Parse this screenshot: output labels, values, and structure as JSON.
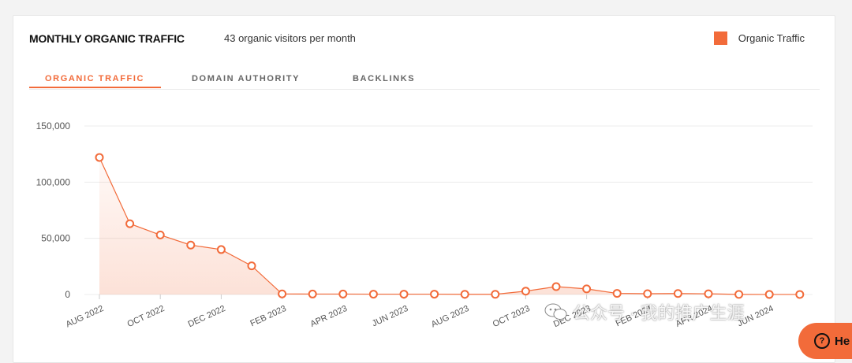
{
  "header": {
    "title": "MONTHLY ORGANIC TRAFFIC",
    "subtitle": "43 organic visitors per month",
    "legend_label": "Organic Traffic",
    "legend_color": "#f26b3a"
  },
  "tabs": [
    {
      "label": "ORGANIC TRAFFIC",
      "active": true
    },
    {
      "label": "DOMAIN AUTHORITY",
      "active": false
    },
    {
      "label": "BACKLINKS",
      "active": false
    }
  ],
  "chart_data": {
    "type": "area",
    "title": "",
    "xlabel": "",
    "ylabel": "",
    "ylim": [
      0,
      150000
    ],
    "yticks": [
      0,
      50000,
      100000,
      150000
    ],
    "ytick_labels": [
      "0",
      "50,000",
      "100,000",
      "150,000"
    ],
    "grid": true,
    "legend_placement": "top-right",
    "x": [
      "Aug 2022",
      "Sep 2022",
      "Oct 2022",
      "Nov 2022",
      "Dec 2022",
      "Jan 2023",
      "Feb 2023",
      "Mar 2023",
      "Apr 2023",
      "May 2023",
      "Jun 2023",
      "Jul 2023",
      "Aug 2023",
      "Sep 2023",
      "Oct 2023",
      "Nov 2023",
      "Dec 2023",
      "Jan 2024",
      "Feb 2024",
      "Mar 2024",
      "Apr 2024",
      "May 2024",
      "Jun 2024",
      "Jul 2024"
    ],
    "xtick_labels": [
      "AUG 2022",
      "OCT 2022",
      "DEC 2022",
      "FEB 2023",
      "APR 2023",
      "JUN 2023",
      "AUG 2023",
      "OCT 2023",
      "DEC 2023",
      "FEB 2024",
      "APR 2024",
      "JUN 2024"
    ],
    "series": [
      {
        "name": "Organic Traffic",
        "color": "#f26b3a",
        "values": [
          122000,
          63000,
          53000,
          44000,
          40000,
          25500,
          500,
          400,
          400,
          300,
          300,
          300,
          200,
          200,
          3000,
          7000,
          5000,
          1000,
          700,
          900,
          600,
          100,
          50,
          43
        ]
      }
    ]
  },
  "watermark": {
    "text": "公众号 · 我的推广生涯",
    "icon": "wechat-icon"
  },
  "help_button": {
    "label": "He",
    "icon": "question-icon",
    "color": "#f26b3a"
  }
}
